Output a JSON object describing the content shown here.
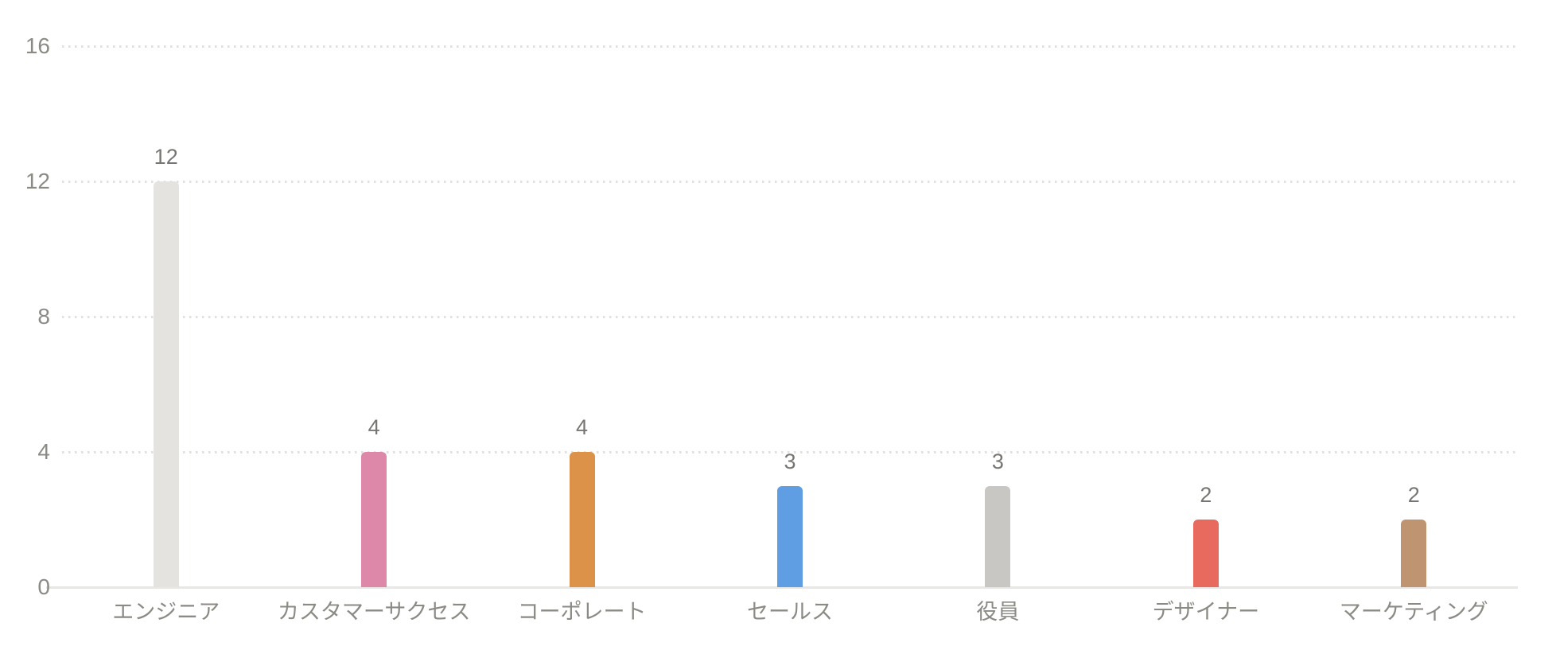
{
  "chart_data": {
    "type": "bar",
    "title": "",
    "xlabel": "",
    "ylabel": "",
    "categories": [
      "エンジニア",
      "カスタマーサクセス",
      "コーポレート",
      "セールス",
      "役員",
      "デザイナー",
      "マーケティング"
    ],
    "values": [
      12,
      4,
      4,
      3,
      3,
      2,
      2
    ],
    "value_labels": [
      "12",
      "4",
      "4",
      "3",
      "3",
      "2",
      "2"
    ],
    "bar_colors": [
      "#e5e3df",
      "#de88a9",
      "#dd9249",
      "#5f9ee2",
      "#c9c7c4",
      "#e86a5e",
      "#bf9471"
    ],
    "ylim": [
      0,
      16
    ],
    "yticks": [
      0,
      4,
      8,
      12,
      16
    ],
    "ytick_labels": [
      "0",
      "4",
      "8",
      "12",
      "16"
    ],
    "grid": "dotted-horizontal",
    "legend": "none",
    "colors": {
      "background": "#ffffff",
      "grid_line": "#e3e1de",
      "axis_line": "#e9e7e4",
      "tick_label_text": "#8b8a85",
      "value_label_text": "#787672"
    }
  }
}
